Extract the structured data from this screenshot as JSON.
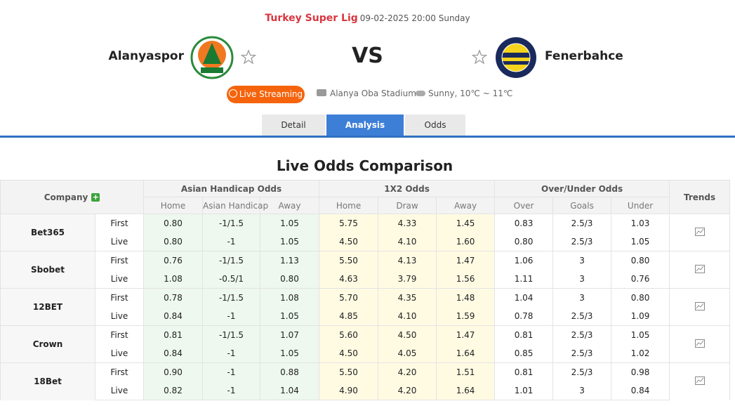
{
  "header": {
    "league": "Turkey Super Lig",
    "datetime": "09-02-2025 20:00 Sunday",
    "home": "Alanyaspor",
    "vs": "VS",
    "away": "Fenerbahce",
    "live": "Live Streaming",
    "stadium": "Alanya Oba Stadium",
    "weather": "Sunny, 10℃ ~ 11℃"
  },
  "tabs": [
    "Detail",
    "Analysis",
    "Odds"
  ],
  "title": "Live Odds Comparison",
  "table": {
    "company_header": "Company",
    "groups": [
      "Asian Handicap Odds",
      "1X2 Odds",
      "Over/Under Odds"
    ],
    "trends": "Trends",
    "subheaders": [
      "Home",
      "Asian Handicap",
      "Away",
      "Home",
      "Draw",
      "Away",
      "Over",
      "Goals",
      "Under"
    ],
    "rows": [
      {
        "company": "Bet365",
        "lines": [
          {
            "stage": "First",
            "cells": [
              "0.80",
              "-1/1.5",
              "1.05",
              "5.75",
              "4.33",
              "1.45",
              "0.83",
              "2.5/3",
              "1.03"
            ]
          },
          {
            "stage": "Live",
            "cells": [
              "0.80",
              "-1",
              "1.05",
              "4.50",
              "4.10",
              "1.60",
              "0.80",
              "2.5/3",
              "1.05"
            ]
          }
        ]
      },
      {
        "company": "Sbobet",
        "lines": [
          {
            "stage": "First",
            "cells": [
              "0.76",
              "-1/1.5",
              "1.13",
              "5.50",
              "4.13",
              "1.47",
              "1.06",
              "3",
              "0.80"
            ]
          },
          {
            "stage": "Live",
            "cells": [
              "1.08",
              "-0.5/1",
              "0.80",
              "4.63",
              "3.79",
              "1.56",
              "1.11",
              "3",
              "0.76"
            ]
          }
        ]
      },
      {
        "company": "12BET",
        "lines": [
          {
            "stage": "First",
            "cells": [
              "0.78",
              "-1/1.5",
              "1.08",
              "5.70",
              "4.35",
              "1.48",
              "1.04",
              "3",
              "0.80"
            ]
          },
          {
            "stage": "Live",
            "cells": [
              "0.84",
              "-1",
              "1.05",
              "4.85",
              "4.10",
              "1.59",
              "0.78",
              "2.5/3",
              "1.09"
            ]
          }
        ]
      },
      {
        "company": "Crown",
        "lines": [
          {
            "stage": "First",
            "cells": [
              "0.81",
              "-1/1.5",
              "1.07",
              "5.60",
              "4.50",
              "1.47",
              "0.81",
              "2.5/3",
              "1.05"
            ]
          },
          {
            "stage": "Live",
            "cells": [
              "0.84",
              "-1",
              "1.05",
              "4.50",
              "4.05",
              "1.64",
              "0.85",
              "2.5/3",
              "1.02"
            ]
          }
        ]
      },
      {
        "company": "18Bet",
        "lines": [
          {
            "stage": "First",
            "cells": [
              "0.90",
              "-1",
              "0.88",
              "5.50",
              "4.20",
              "1.51",
              "0.81",
              "2.5/3",
              "0.98"
            ]
          },
          {
            "stage": "Live",
            "cells": [
              "0.82",
              "-1",
              "1.04",
              "4.90",
              "4.20",
              "1.64",
              "1.01",
              "3",
              "0.84"
            ]
          }
        ]
      }
    ]
  }
}
